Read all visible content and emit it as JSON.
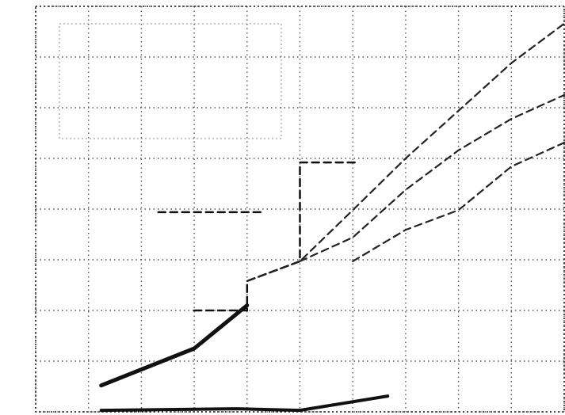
{
  "chart_data": {
    "type": "line",
    "xlim": [
      0,
      10
    ],
    "ylim": [
      0,
      8
    ],
    "xticks": [
      0,
      1,
      2,
      3,
      4,
      5,
      6,
      7,
      8,
      9,
      10
    ],
    "yticks": [
      0,
      1,
      2,
      3,
      4,
      5,
      6,
      7,
      8
    ],
    "grid": true,
    "series": [
      {
        "color": "#111111",
        "style": "solid",
        "width": 5,
        "x": [
          1.24,
          3.0,
          4.0
        ],
        "values": [
          0.52,
          1.25,
          2.1
        ]
      },
      {
        "color": "#111111",
        "style": "solid",
        "width": 4,
        "x": [
          1.24,
          3.8,
          5.0,
          6.66
        ],
        "values": [
          0.03,
          0.06,
          0.03,
          0.31
        ]
      },
      {
        "color": "#111111",
        "style": "dashed",
        "width": 2.5,
        "x": [
          3.0,
          4.0,
          4.0,
          5.0,
          5.0,
          6.06
        ],
        "values": [
          2.0,
          2.0,
          2.58,
          2.97,
          4.92,
          4.92
        ]
      },
      {
        "color": "#222222",
        "style": "dashed",
        "width": 2.2,
        "x": [
          4.0,
          5.0,
          6.0,
          7.0,
          8.0,
          9.0,
          10.0
        ],
        "values": [
          2.58,
          2.97,
          3.98,
          5.0,
          5.94,
          6.88,
          7.66
        ]
      },
      {
        "color": "#222222",
        "style": "dashed",
        "width": 2.2,
        "x": [
          5.0,
          6.0,
          7.0,
          8.0,
          9.0,
          10.0
        ],
        "values": [
          2.97,
          3.44,
          4.38,
          5.16,
          5.78,
          6.25
        ]
      },
      {
        "color": "#222222",
        "style": "dashed",
        "width": 2.2,
        "x": [
          6.0,
          7.0,
          8.0,
          9.0,
          10.0
        ],
        "values": [
          2.97,
          3.59,
          3.98,
          4.84,
          5.31
        ]
      },
      {
        "color": "#111111",
        "style": "dashed",
        "width": 2.5,
        "x": [
          2.32,
          4.27
        ],
        "values": [
          3.94,
          3.94
        ]
      }
    ]
  }
}
